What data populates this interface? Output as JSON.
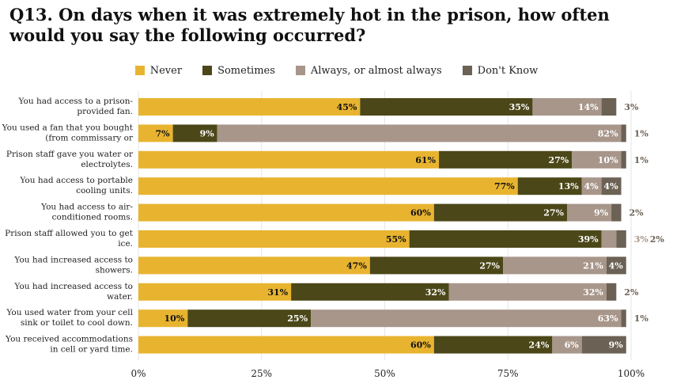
{
  "title": "Q13. On days when it was extremely hot in the prison, how often would you say the following occurred?",
  "colors": {
    "Never": "#e8b430",
    "Sometimes": "#4b4718",
    "Always, or almost always": "#a8968a",
    "Don't Know": "#6b6154"
  },
  "chart_data": {
    "type": "bar",
    "orientation": "horizontal",
    "stacked": true,
    "title": "Q13. On days when it was extremely hot in the prison, how often would you say the following occurred?",
    "legend_position": "top",
    "xlim": [
      0,
      100
    ],
    "x_ticks": [
      "0%",
      "25%",
      "50%",
      "75%",
      "100%"
    ],
    "categories": [
      [
        "You had access to a prison-",
        "provided fan."
      ],
      [
        "You used a fan that you bought",
        "(from commissary or"
      ],
      [
        "Prison staff gave you water or",
        "electrolytes."
      ],
      [
        "You had access to portable",
        "cooling units."
      ],
      [
        "You had access to air-",
        "conditioned rooms."
      ],
      [
        "Prison staff allowed you to get",
        "ice."
      ],
      [
        "You had increased access to",
        "showers."
      ],
      [
        "You had increased access to",
        "water."
      ],
      [
        "You used water from your cell",
        "sink or toilet to cool down."
      ],
      [
        "You received accommodations",
        "in cell or yard time."
      ]
    ],
    "series": [
      {
        "name": "Never",
        "values": [
          45,
          7,
          61,
          77,
          60,
          55,
          47,
          31,
          10,
          60
        ]
      },
      {
        "name": "Sometimes",
        "values": [
          35,
          9,
          27,
          13,
          27,
          39,
          27,
          32,
          25,
          24
        ]
      },
      {
        "name": "Always, or almost always",
        "values": [
          14,
          82,
          10,
          4,
          9,
          3,
          21,
          32,
          63,
          6
        ]
      },
      {
        "name": "Don't Know",
        "values": [
          3,
          1,
          1,
          4,
          2,
          2,
          4,
          2,
          1,
          9
        ]
      }
    ]
  }
}
